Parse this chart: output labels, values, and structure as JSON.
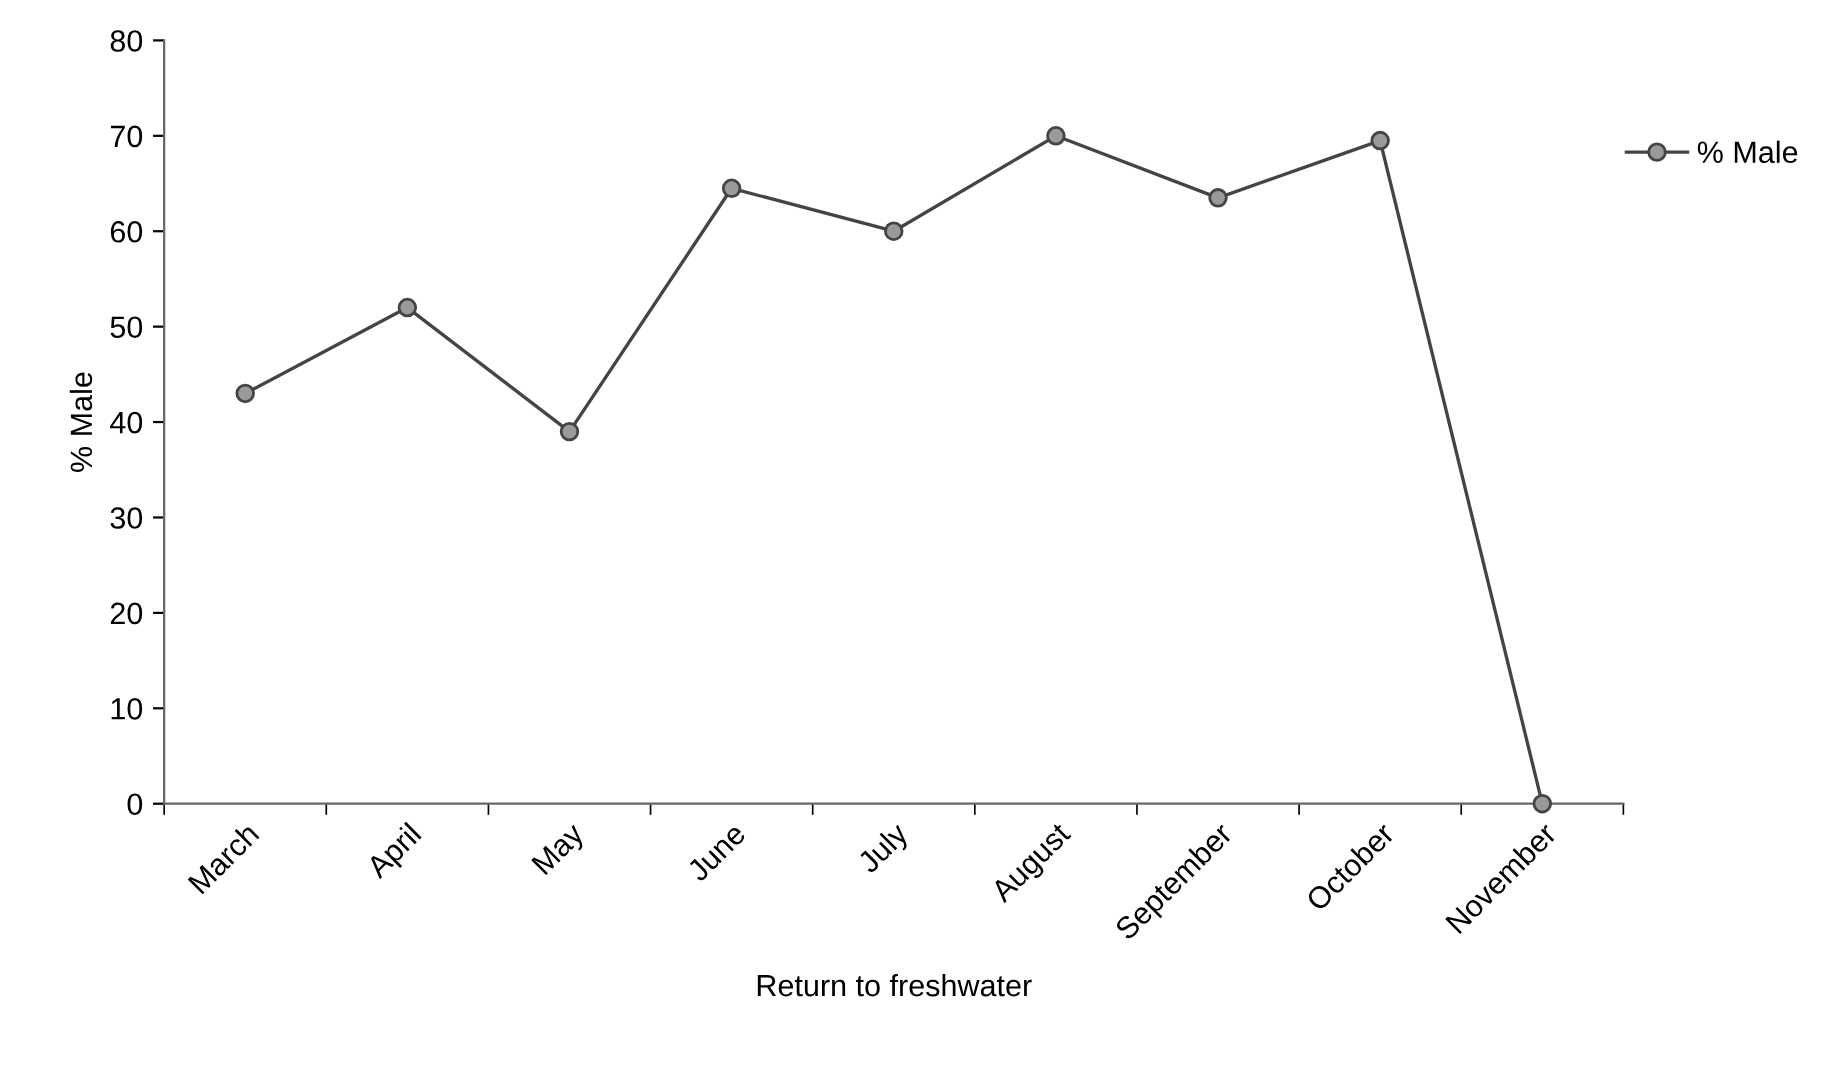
{
  "chart_data": {
    "type": "line",
    "xlabel": "Return to freshwater",
    "ylabel": "% Male",
    "categories": [
      "March",
      "April",
      "May",
      "June",
      "July",
      "August",
      "September",
      "October",
      "November"
    ],
    "series": [
      {
        "name": "% Male",
        "color": "#444444",
        "values": [
          43,
          52,
          39,
          64.5,
          60,
          70,
          63.5,
          69.5,
          0
        ]
      }
    ],
    "ylim": [
      0,
      80
    ],
    "yticks": [
      0,
      10,
      20,
      30,
      40,
      50,
      60,
      70,
      80
    ],
    "grid": false,
    "legend": "right",
    "marker": "circle",
    "line_style": "solid"
  }
}
